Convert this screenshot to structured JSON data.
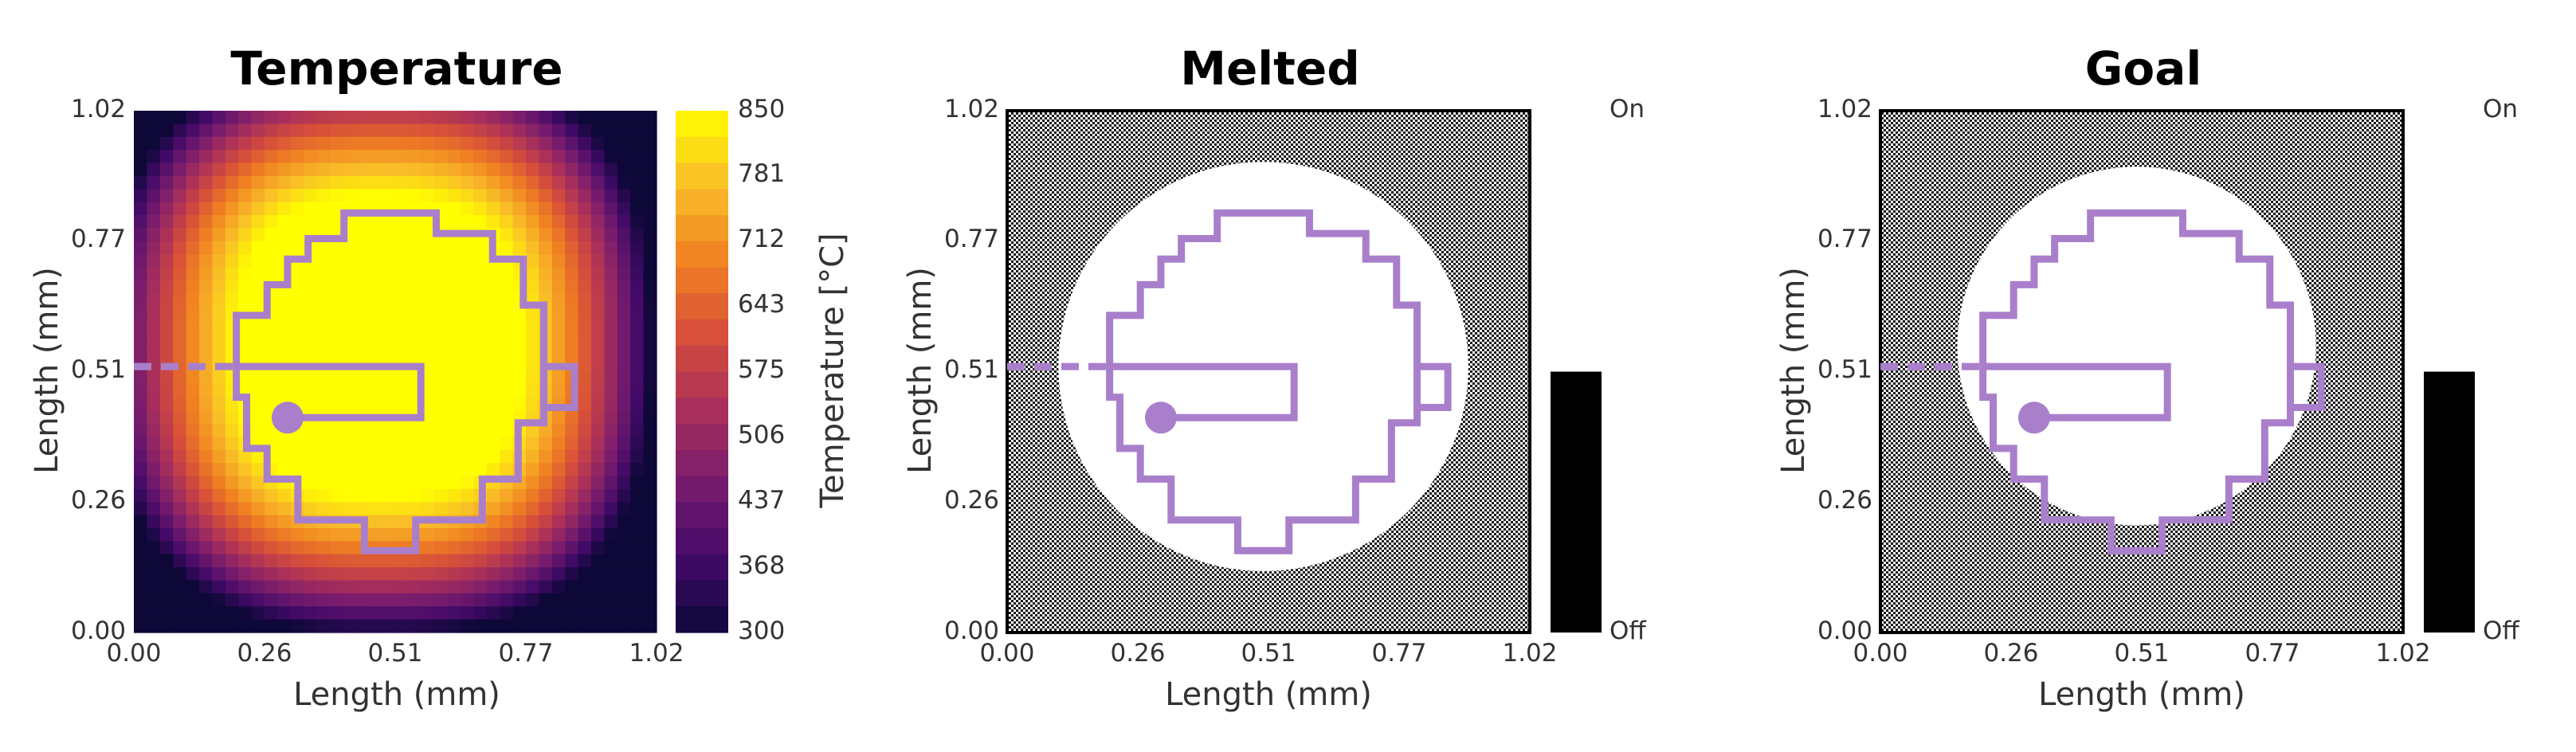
{
  "chart_data": [
    {
      "type": "heatmap",
      "title": "Temperature",
      "xlabel": "Length (mm)",
      "ylabel": "Length (mm)",
      "xlim": [
        0.0,
        1.02
      ],
      "ylim": [
        0.0,
        1.02
      ],
      "x_ticks": [
        "0.00",
        "0.26",
        "0.51",
        "0.77",
        "1.02"
      ],
      "y_ticks": [
        "0.00",
        "0.26",
        "0.51",
        "0.77",
        "1.02"
      ],
      "colorbar": {
        "label": "Temperature [°C]",
        "range": [
          300,
          850
        ],
        "ticks": [
          "300",
          "368",
          "437",
          "506",
          "575",
          "643",
          "712",
          "781",
          "850"
        ],
        "colormap": "inferno"
      },
      "heat_source": {
        "center_x": 0.48,
        "center_y": 0.56,
        "peak": 850,
        "ambient": 300
      }
    },
    {
      "type": "heatmap",
      "title": "Melted",
      "xlabel": "Length (mm)",
      "ylabel": "Length (mm)",
      "xlim": [
        0.0,
        1.02
      ],
      "ylim": [
        0.0,
        1.02
      ],
      "x_ticks": [
        "0.00",
        "0.26",
        "0.51",
        "0.77",
        "1.02"
      ],
      "y_ticks": [
        "0.00",
        "0.26",
        "0.51",
        "0.77",
        "1.02"
      ],
      "state_bar": {
        "top_label": "On",
        "bottom_label": "Off",
        "value": 0.5
      },
      "melted_region": {
        "center_x": 0.5,
        "center_y": 0.52,
        "rx": 0.4,
        "ry": 0.4
      }
    },
    {
      "type": "heatmap",
      "title": "Goal",
      "xlabel": "Length (mm)",
      "ylabel": "Length (mm)",
      "xlim": [
        0.0,
        1.02
      ],
      "ylim": [
        0.0,
        1.02
      ],
      "x_ticks": [
        "0.00",
        "0.26",
        "0.51",
        "0.77",
        "1.02"
      ],
      "y_ticks": [
        "0.00",
        "0.26",
        "0.51",
        "0.77",
        "1.02"
      ],
      "state_bar": {
        "top_label": "On",
        "bottom_label": "Off",
        "value": 0.5
      },
      "goal_region": {
        "center_x": 0.5,
        "center_y": 0.56,
        "r": 0.35
      }
    }
  ],
  "scan_path": {
    "color": "#a97fcb",
    "points_mm": [
      [
        0.0,
        0.52
      ],
      [
        0.2,
        0.52
      ],
      [
        0.2,
        0.46
      ],
      [
        0.22,
        0.46
      ],
      [
        0.22,
        0.36
      ],
      [
        0.26,
        0.36
      ],
      [
        0.26,
        0.3
      ],
      [
        0.32,
        0.3
      ],
      [
        0.32,
        0.22
      ],
      [
        0.45,
        0.22
      ],
      [
        0.45,
        0.16
      ],
      [
        0.55,
        0.16
      ],
      [
        0.55,
        0.22
      ],
      [
        0.68,
        0.22
      ],
      [
        0.68,
        0.3
      ],
      [
        0.75,
        0.3
      ],
      [
        0.75,
        0.41
      ],
      [
        0.8,
        0.41
      ],
      [
        0.8,
        0.52
      ],
      [
        0.86,
        0.52
      ],
      [
        0.86,
        0.44
      ],
      [
        0.8,
        0.44
      ],
      [
        0.8,
        0.64
      ],
      [
        0.76,
        0.64
      ],
      [
        0.76,
        0.73
      ],
      [
        0.7,
        0.73
      ],
      [
        0.7,
        0.78
      ],
      [
        0.59,
        0.78
      ],
      [
        0.59,
        0.82
      ],
      [
        0.41,
        0.82
      ],
      [
        0.41,
        0.77
      ],
      [
        0.34,
        0.77
      ],
      [
        0.34,
        0.73
      ],
      [
        0.3,
        0.73
      ],
      [
        0.3,
        0.68
      ],
      [
        0.26,
        0.68
      ],
      [
        0.26,
        0.62
      ],
      [
        0.2,
        0.62
      ],
      [
        0.2,
        0.52
      ],
      [
        0.56,
        0.52
      ],
      [
        0.56,
        0.42
      ],
      [
        0.3,
        0.42
      ]
    ],
    "dashed_until_x": 0.2,
    "marker": [
      0.3,
      0.42
    ]
  }
}
